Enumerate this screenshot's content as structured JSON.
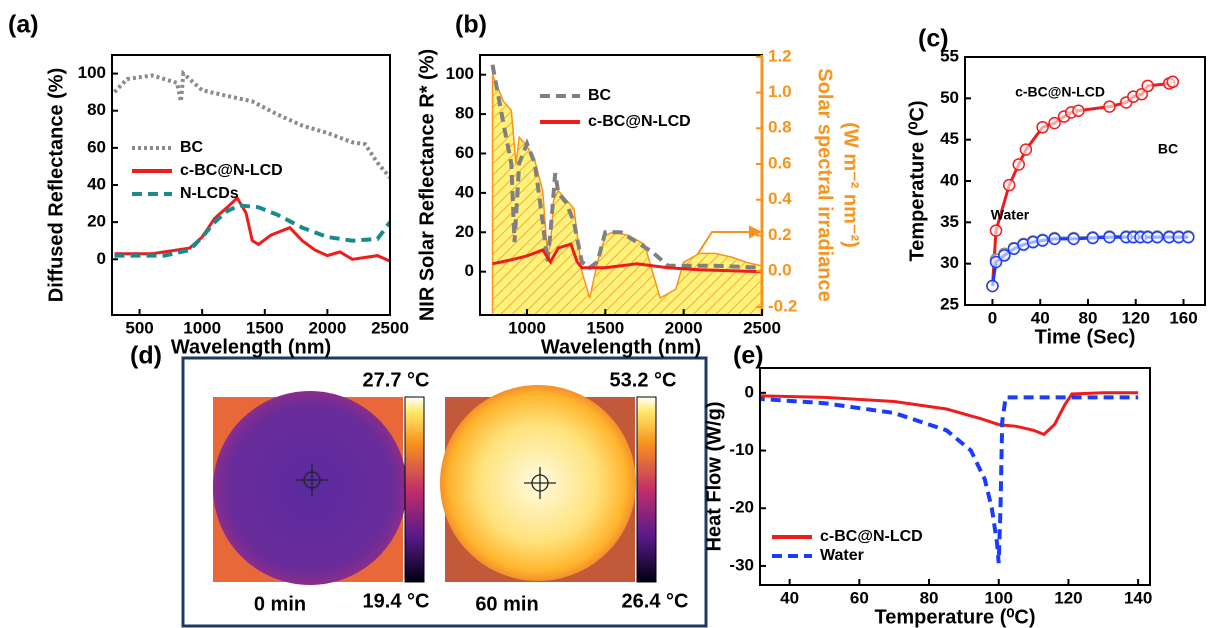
{
  "chart_data": [
    {
      "type": "line",
      "panel": "(a)",
      "xlabel": "Wavelength (nm)",
      "ylabel": "Diffused Reflectance (%)",
      "xlim": [
        280,
        2500
      ],
      "ylim": [
        -30,
        110
      ],
      "xticks": [
        500,
        1000,
        1500,
        2000,
        2500
      ],
      "yticks": [
        0,
        20,
        40,
        60,
        80,
        100
      ],
      "legend": "center left",
      "series": [
        {
          "name": "BC",
          "color": "#8a8a8a",
          "style": "dotted",
          "x": [
            300,
            400,
            600,
            800,
            830,
            850,
            1000,
            1200,
            1400,
            1600,
            1800,
            2000,
            2200,
            2300,
            2400,
            2500
          ],
          "values": [
            90,
            97,
            99,
            95,
            85,
            100,
            91,
            88,
            85,
            78,
            72,
            68,
            63,
            62,
            52,
            44
          ]
        },
        {
          "name": "c-BC@N-LCD",
          "color": "#ee1c1c",
          "style": "solid",
          "x": [
            300,
            600,
            900,
            1000,
            1100,
            1200,
            1280,
            1350,
            1400,
            1450,
            1550,
            1700,
            1800,
            1900,
            2000,
            2100,
            2200,
            2400,
            2500
          ],
          "values": [
            3,
            3,
            6,
            12,
            22,
            28,
            33,
            25,
            10,
            8,
            13,
            17,
            10,
            5,
            2,
            4,
            0,
            2,
            -1
          ]
        },
        {
          "name": "N-LCDs",
          "color": "#1a8a8a",
          "style": "dashed",
          "x": [
            300,
            700,
            900,
            1000,
            1100,
            1200,
            1300,
            1450,
            1600,
            1800,
            2000,
            2200,
            2400,
            2500
          ],
          "values": [
            2,
            2,
            5,
            12,
            20,
            26,
            29,
            28,
            24,
            17,
            12,
            10,
            11,
            20
          ]
        }
      ]
    },
    {
      "type": "line",
      "panel": "(b)",
      "xlabel": "Wavelength (nm)",
      "ylabel": "NIR Solar Reflectance R* (%)",
      "y2label": [
        "Solar spectral irradiance",
        "(W m⁻² nm⁻²)"
      ],
      "xlim": [
        700,
        2500
      ],
      "ylim": [
        -22,
        110
      ],
      "y2lim": [
        -0.245,
        1.21
      ],
      "xticks": [
        1000,
        1500,
        2000,
        2500
      ],
      "yticks": [
        0,
        20,
        40,
        60,
        80,
        100
      ],
      "y2ticks": [
        -0.2,
        {
          "value": 0,
          "label": "0.0"
        },
        0.2,
        0.4,
        0.6,
        0.8,
        {
          "value": 1,
          "label": "1.0"
        },
        1.2
      ],
      "legend": "upper center",
      "series": [
        {
          "type": "area",
          "axis": "y2",
          "color": "#f7941d",
          "x": [
            780,
            850,
            900,
            930,
            950,
            1000,
            1050,
            1100,
            1130,
            1150,
            1170,
            1200,
            1250,
            1300,
            1350,
            1400,
            1450,
            1500,
            1550,
            1650,
            1750,
            1800,
            1850,
            1950,
            2000,
            2100,
            2200,
            2300,
            2400,
            2500
          ],
          "values": [
            1.1,
            0.95,
            0.9,
            0.6,
            0.75,
            0.7,
            0.62,
            0.45,
            0.1,
            0.15,
            0.4,
            0.45,
            0.4,
            0.35,
            0.0,
            -0.15,
            0.05,
            0.2,
            0.22,
            0.2,
            0.15,
            0.0,
            -0.15,
            -0.1,
            0.05,
            0.1,
            0.1,
            0.08,
            0.05,
            0.03
          ]
        },
        {
          "name": "BC",
          "color": "#808080",
          "style": "dashed",
          "x": [
            780,
            850,
            900,
            920,
            950,
            1000,
            1050,
            1100,
            1130,
            1150,
            1180,
            1200,
            1250,
            1300,
            1350,
            1400,
            1450,
            1500,
            1600,
            1700,
            1800,
            1900,
            2000,
            2200,
            2500
          ],
          "values": [
            105,
            75,
            55,
            15,
            55,
            65,
            55,
            25,
            5,
            20,
            50,
            40,
            35,
            25,
            5,
            2,
            5,
            20,
            20,
            15,
            10,
            3,
            3,
            3,
            2
          ]
        },
        {
          "name": "c-BC@N-LCD",
          "color": "#ee1c1c",
          "style": "solid",
          "x": [
            780,
            900,
            1000,
            1100,
            1150,
            1200,
            1280,
            1320,
            1350,
            1500,
            1700,
            1900,
            2100,
            2500
          ],
          "values": [
            4,
            6,
            8,
            11,
            5,
            12,
            14,
            5,
            2,
            2,
            4,
            2,
            1,
            0
          ]
        }
      ]
    },
    {
      "type": "line",
      "panel": "(c)",
      "xlabel": "Time (Sec)",
      "ylabel": "Temperature (⁰C)",
      "xlim": [
        -23,
        178
      ],
      "ylim": [
        25,
        55
      ],
      "xticks": [
        0,
        40,
        80,
        120,
        160
      ],
      "yticks": [
        25,
        30,
        35,
        40,
        45,
        50,
        55
      ],
      "legend": "inline",
      "series": [
        {
          "name": "c-BC@N-LCD",
          "color": "#ee1c1c",
          "style": "solid",
          "marker": "circle",
          "x": [
            0,
            3,
            14,
            22,
            28,
            42,
            52,
            60,
            66,
            72,
            98,
            112,
            118,
            125,
            130,
            148,
            151
          ],
          "values": [
            27.3,
            34,
            39.5,
            42,
            43.8,
            46.5,
            47,
            47.8,
            48.3,
            48.5,
            49,
            49.5,
            50.2,
            50.5,
            51.5,
            51.8,
            52
          ]
        },
        {
          "name": "BC",
          "color": "#8a8a8a",
          "style": "solid",
          "marker": "circle",
          "x": [
            3,
            10,
            18,
            26,
            34,
            42,
            52,
            68,
            84,
            98,
            112,
            118,
            124,
            130,
            138,
            148,
            156,
            164
          ],
          "values": [
            30.5,
            31.2,
            31.9,
            32.4,
            32.7,
            32.9,
            33.1,
            33.1,
            33.2,
            33.3,
            33.3,
            33.3,
            33.3,
            33.3,
            33.3,
            33.3,
            33.3,
            33.3
          ]
        },
        {
          "name": "Water",
          "color": "#1a3cff",
          "style": "solid",
          "marker": "circle",
          "x": [
            0,
            3,
            10,
            18,
            26,
            34,
            42,
            52,
            68,
            84,
            98,
            112,
            118,
            124,
            130,
            138,
            148,
            156,
            164
          ],
          "values": [
            27.3,
            30.2,
            31,
            31.8,
            32.3,
            32.6,
            32.8,
            33,
            33,
            33.1,
            33.2,
            33.2,
            33.2,
            33.2,
            33.2,
            33.2,
            33.2,
            33.2,
            33.2
          ]
        }
      ]
    },
    {
      "type": "line",
      "panel": "(e)",
      "xlabel": "Temperature (⁰C)",
      "ylabel": "Heat Flow (W/g)",
      "xlim": [
        31.5,
        143.4
      ],
      "ylim": [
        -33.3,
        4.3
      ],
      "xticks": [
        40,
        60,
        80,
        100,
        120,
        140
      ],
      "yticks": [
        -30,
        -20,
        -10,
        0
      ],
      "legend": "lower left",
      "series": [
        {
          "name": "c-BC@N-LCD",
          "color": "#ee1c1c",
          "style": "solid",
          "x": [
            30,
            50,
            70,
            85,
            95,
            100,
            105,
            110,
            113,
            116,
            119,
            121,
            130,
            140
          ],
          "values": [
            -0.5,
            -0.8,
            -1.5,
            -2.8,
            -4.5,
            -5.5,
            -5.8,
            -6.5,
            -7.2,
            -5.5,
            -2,
            -0.2,
            0,
            0
          ]
        },
        {
          "name": "Water",
          "color": "#1a3cff",
          "style": "dashed",
          "x": [
            30,
            50,
            70,
            85,
            92,
            96,
            98,
            99.5,
            100,
            100.5,
            101,
            102,
            110,
            140
          ],
          "values": [
            -1,
            -1.8,
            -3.5,
            -6.5,
            -10,
            -15,
            -20,
            -26,
            -29.5,
            -20,
            -5,
            -0.8,
            -0.8,
            -0.8
          ]
        }
      ]
    }
  ],
  "thermal_images": {
    "panel": "(d)",
    "images": [
      {
        "max": "27.7 °C",
        "min": "19.4 °C",
        "time": "0 min"
      },
      {
        "max": "53.2 °C",
        "min": "26.4 °C",
        "time": "60 min"
      }
    ]
  }
}
